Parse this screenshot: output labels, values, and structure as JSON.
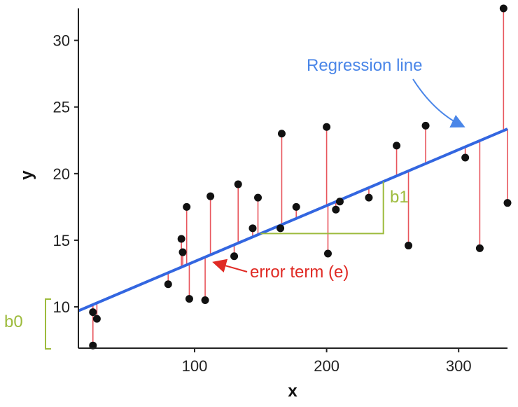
{
  "chart_data": {
    "type": "scatter",
    "title": "",
    "xlabel": "x",
    "ylabel": "y",
    "xlim": [
      12,
      337
    ],
    "ylim": [
      6.9,
      32.4
    ],
    "xticks": [
      100,
      200,
      300
    ],
    "yticks": [
      10,
      15,
      20,
      25,
      30
    ],
    "xtick_labels": [
      "100",
      "200",
      "300"
    ],
    "ytick_labels": [
      "10",
      "15",
      "20",
      "25",
      "30"
    ],
    "grid": false,
    "regression": {
      "intercept": 9.2,
      "slope": 0.042
    },
    "points": [
      {
        "x": 23,
        "y": 7.1
      },
      {
        "x": 23,
        "y": 9.6
      },
      {
        "x": 26,
        "y": 9.1
      },
      {
        "x": 80,
        "y": 11.7
      },
      {
        "x": 90,
        "y": 15.1
      },
      {
        "x": 91,
        "y": 14.1
      },
      {
        "x": 94,
        "y": 17.5
      },
      {
        "x": 96,
        "y": 10.6
      },
      {
        "x": 108,
        "y": 10.5
      },
      {
        "x": 112,
        "y": 18.3
      },
      {
        "x": 130,
        "y": 13.8
      },
      {
        "x": 133,
        "y": 19.2
      },
      {
        "x": 144,
        "y": 15.9
      },
      {
        "x": 148,
        "y": 18.2
      },
      {
        "x": 165,
        "y": 15.9
      },
      {
        "x": 166,
        "y": 23.0
      },
      {
        "x": 177,
        "y": 17.5
      },
      {
        "x": 200,
        "y": 23.5
      },
      {
        "x": 201,
        "y": 14.0
      },
      {
        "x": 207,
        "y": 17.3
      },
      {
        "x": 210,
        "y": 17.9
      },
      {
        "x": 232,
        "y": 18.2
      },
      {
        "x": 253,
        "y": 22.1
      },
      {
        "x": 262,
        "y": 14.6
      },
      {
        "x": 275,
        "y": 23.6
      },
      {
        "x": 305,
        "y": 21.2
      },
      {
        "x": 316,
        "y": 14.4
      },
      {
        "x": 334,
        "y": 32.4
      },
      {
        "x": 337,
        "y": 17.8
      }
    ],
    "annotations": {
      "regression_line": "Regression line",
      "error_term": "error term (e)",
      "slope_label": "b1",
      "intercept_label": "b0"
    },
    "slope_triangle": {
      "x_start": 150,
      "x_end": 243
    }
  },
  "colors": {
    "regression": "#3366e0",
    "residual": "#e8555c",
    "point": "#111111",
    "annotation_blue": "#4a86e8",
    "annotation_red": "#e02a24",
    "annotation_green": "#9dbb3c",
    "axis": "#222222"
  }
}
